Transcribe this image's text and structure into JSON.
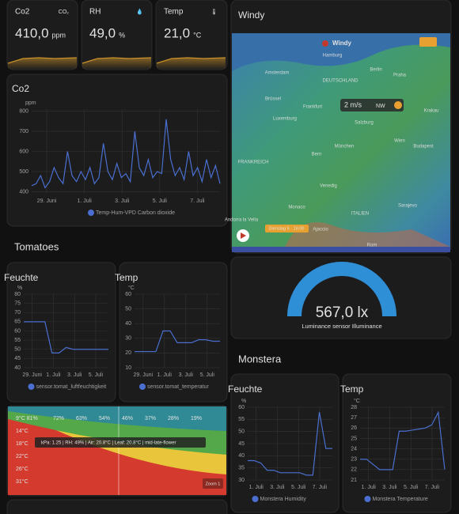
{
  "sensors": [
    {
      "name": "Co2",
      "value": "410,0",
      "unit": "ppm"
    },
    {
      "name": "RH",
      "value": "49,0",
      "unit": "%"
    },
    {
      "name": "Temp",
      "value": "21,0",
      "unit": "°C"
    }
  ],
  "co2_chart": {
    "type": "line",
    "title": "Co2",
    "unit": "ppm",
    "color": "#4a6fd1",
    "ylim": [
      390,
      810
    ],
    "yticks": [
      400,
      500,
      600,
      700,
      800
    ],
    "xtick_labels": [
      "29. Juni",
      "1. Juli",
      "3. Juli",
      "5. Juli",
      "7. Juli"
    ],
    "values": [
      430,
      440,
      480,
      420,
      450,
      520,
      470,
      440,
      600,
      480,
      450,
      500,
      460,
      520,
      440,
      470,
      640,
      500,
      460,
      540,
      470,
      490,
      450,
      700,
      520,
      480,
      560,
      470,
      500,
      490,
      760,
      560,
      480,
      520,
      460,
      600,
      480,
      520,
      450,
      560,
      470,
      530,
      440
    ],
    "legend": "Temp-Hum-VPD Carbon dioxide"
  },
  "tomatoes": {
    "heading": "Tomatoes",
    "humidity": {
      "type": "line",
      "title": "Feuchte",
      "unit": "%",
      "color": "#4a6fd1",
      "ylim": [
        40,
        80
      ],
      "yticks": [
        40,
        45,
        50,
        55,
        60,
        65,
        70,
        75,
        80
      ],
      "xtick_labels": [
        "29. Juni",
        "1. Juli",
        "3. Juli",
        "5. Juli"
      ],
      "values": [
        65,
        65,
        65,
        65,
        48,
        48,
        51,
        50,
        50,
        50,
        50,
        50,
        50
      ],
      "legend": "sensor.tomat_luftfeuchtigkeit"
    },
    "temperature": {
      "type": "line",
      "title": "Temp",
      "unit": "°C",
      "color": "#4a6fd1",
      "ylim": [
        10,
        60
      ],
      "yticks": [
        10,
        20,
        30,
        40,
        50,
        60
      ],
      "xtick_labels": [
        "29. Juni",
        "1. Juli",
        "3. Juli",
        "5. Juli"
      ],
      "values": [
        21,
        21,
        21,
        21,
        35,
        35,
        27,
        27,
        27,
        29,
        29,
        28,
        28
      ],
      "legend": "sensor.tomat_temperatur"
    }
  },
  "vpd": {
    "top_labels": [
      "9°C 81%",
      "72%",
      "63%",
      "54%",
      "46%",
      "37%",
      "28%",
      "19%"
    ],
    "left_labels": [
      "14°C",
      "18°C",
      "22°C",
      "26°C",
      "31°C"
    ],
    "tooltip": "kPa: 1.25 | RH: 49% | Air: 20.8°C | Leaf: 20.8°C | mid-late-flower",
    "zoom": "Zoom 1"
  },
  "windy": {
    "title": "Windy",
    "logo": "Windy",
    "cities": [
      "Hamburg",
      "Berlin",
      "Amsterdam",
      "DEUTSCHLAND",
      "Brüssel",
      "Luxemburg",
      "Frankfurt",
      "Praha",
      "Wien",
      "Salzburg",
      "München",
      "Bern",
      "Venedig",
      "Monaco",
      "ITALIEN",
      "Sarajevo",
      "Budapest",
      "Krakau",
      "FRANKREICH",
      "Andorra la Vella",
      "Rom",
      "Ajaccio"
    ],
    "wind_speed": "2 m/s",
    "wind_dir": "NW",
    "time": "Dienstag 6 · 16:00"
  },
  "gauge": {
    "value": "567,0 lx",
    "name": "Luminance sensor Illuminance"
  },
  "monstera": {
    "heading": "Monstera",
    "humidity": {
      "type": "line",
      "title": "Feuchte",
      "unit": "%",
      "color": "#4a6fd1",
      "ylim": [
        30,
        60
      ],
      "yticks": [
        30,
        35,
        40,
        45,
        50,
        55,
        60
      ],
      "xtick_labels": [
        "1. Juli",
        "3. Juli",
        "5. Juli",
        "7. Juli"
      ],
      "values": [
        38,
        38,
        37,
        34,
        34,
        33,
        33,
        33,
        33,
        32,
        32,
        58,
        43,
        43
      ],
      "legend": "Monstera Humidity"
    },
    "temperature": {
      "type": "line",
      "title": "Temp",
      "unit": "°C",
      "color": "#4a6fd1",
      "ylim": [
        21,
        28
      ],
      "yticks": [
        21,
        22,
        23,
        24,
        25,
        26,
        27,
        28
      ],
      "xtick_labels": [
        "1. Juli",
        "3. Juli",
        "5. Juli",
        "7. Juli"
      ],
      "values": [
        23,
        23,
        22.5,
        22,
        22,
        22,
        25.7,
        25.7,
        25.8,
        25.9,
        26,
        26.3,
        27.5,
        22
      ],
      "legend": "Monstera Temperature"
    }
  }
}
